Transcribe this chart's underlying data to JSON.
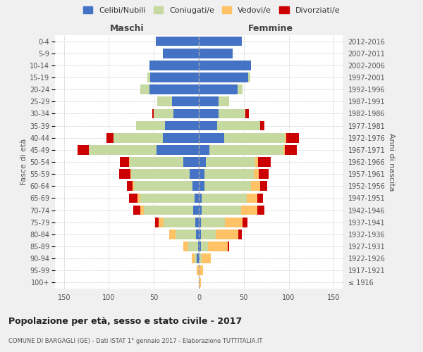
{
  "age_groups": [
    "100+",
    "95-99",
    "90-94",
    "85-89",
    "80-84",
    "75-79",
    "70-74",
    "65-69",
    "60-64",
    "55-59",
    "50-54",
    "45-49",
    "40-44",
    "35-39",
    "30-34",
    "25-29",
    "20-24",
    "15-19",
    "10-14",
    "5-9",
    "0-4"
  ],
  "birth_years": [
    "≤ 1916",
    "1917-1921",
    "1922-1926",
    "1927-1931",
    "1932-1936",
    "1937-1941",
    "1942-1946",
    "1947-1951",
    "1952-1956",
    "1957-1961",
    "1962-1966",
    "1967-1971",
    "1972-1976",
    "1977-1981",
    "1982-1986",
    "1987-1991",
    "1992-1996",
    "1997-2001",
    "2002-2006",
    "2007-2011",
    "2012-2016"
  ],
  "male": {
    "celibi": [
      0,
      0,
      2,
      1,
      3,
      4,
      6,
      5,
      7,
      10,
      17,
      47,
      40,
      38,
      28,
      30,
      55,
      54,
      55,
      40,
      48
    ],
    "coniugati": [
      0,
      0,
      3,
      11,
      23,
      35,
      55,
      60,
      65,
      65,
      60,
      75,
      55,
      32,
      22,
      16,
      10,
      3,
      0,
      0,
      0
    ],
    "vedovi": [
      0,
      2,
      3,
      5,
      7,
      6,
      4,
      3,
      2,
      1,
      1,
      0,
      0,
      0,
      0,
      0,
      0,
      0,
      0,
      0,
      0
    ],
    "divorziati": [
      0,
      0,
      0,
      0,
      0,
      4,
      8,
      10,
      6,
      13,
      10,
      13,
      8,
      0,
      2,
      0,
      0,
      0,
      0,
      0,
      0
    ]
  },
  "female": {
    "nubili": [
      0,
      0,
      1,
      2,
      2,
      2,
      3,
      3,
      6,
      6,
      8,
      12,
      28,
      20,
      22,
      22,
      43,
      55,
      58,
      38,
      48
    ],
    "coniugate": [
      0,
      0,
      2,
      8,
      17,
      27,
      44,
      50,
      52,
      55,
      55,
      82,
      68,
      48,
      30,
      12,
      6,
      2,
      0,
      0,
      0
    ],
    "vedove": [
      2,
      5,
      10,
      22,
      25,
      20,
      18,
      12,
      10,
      6,
      3,
      2,
      1,
      0,
      0,
      0,
      0,
      0,
      0,
      0,
      0
    ],
    "divorziate": [
      0,
      0,
      0,
      2,
      4,
      5,
      8,
      6,
      8,
      11,
      14,
      13,
      14,
      5,
      4,
      0,
      0,
      0,
      0,
      0,
      0
    ]
  },
  "colors": {
    "celibi": "#4472c4",
    "coniugati": "#c5d9a0",
    "vedovi": "#ffc266",
    "divorziati": "#cc0000"
  },
  "title": "Popolazione per età, sesso e stato civile - 2017",
  "subtitle": "COMUNE DI BARGAGLI (GE) - Dati ISTAT 1° gennaio 2017 - Elaborazione TUTTITALIA.IT",
  "ylabel_left": "Fasce di età",
  "ylabel_right": "Anni di nascita",
  "xlabel_left": "Maschi",
  "xlabel_right": "Femmine",
  "xlim": 160,
  "legend_labels": [
    "Celibi/Nubili",
    "Coniugati/e",
    "Vedovi/e",
    "Divorziati/e"
  ],
  "bg_color": "#f0f0f0",
  "plot_bg_color": "#ffffff"
}
